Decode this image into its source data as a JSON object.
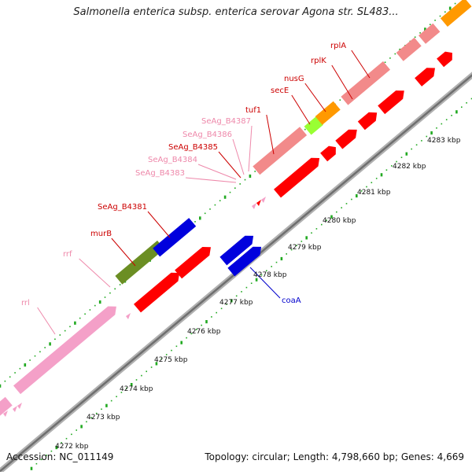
{
  "title": "Salmonella enterica subsp. enterica serovar Agona str. SL483...",
  "accession": "Accession: NC_011149",
  "summary": "Topology: circular; Length: 4,798,660 bp; Genes: 4,669",
  "colors": {
    "backbone": "#888888",
    "rrna": "#f4a0c8",
    "gene_plus": "#f28a8a",
    "gene_minus": "#ff0000",
    "blue_gene": "#0000dd",
    "olive_gene": "#6b8e23",
    "orange_gene": "#ff9900",
    "lime_gene": "#99ff33",
    "tick": "#22aa22",
    "label_red": "#cc0000",
    "label_pink": "#ee88aa",
    "label_blue": "#0000cc"
  },
  "axis_labels": [
    "4272 kbp",
    "4273 kbp",
    "4274 kbp",
    "4275 kbp",
    "4276 kbp",
    "4277 kbp",
    "4278 kbp",
    "4279 kbp",
    "4280 kbp",
    "4281 kbp",
    "4282 kbp",
    "4283 kbp"
  ],
  "gene_labels": [
    "rrl",
    "rrf",
    "murB",
    "SeAg_B4381",
    "SeAg_B4383",
    "SeAg_B4384",
    "SeAg_B4385",
    "SeAg_B4386",
    "SeAg_B4387",
    "tuf1",
    "secE",
    "nusG",
    "rplK",
    "rplA",
    "coaA"
  ]
}
